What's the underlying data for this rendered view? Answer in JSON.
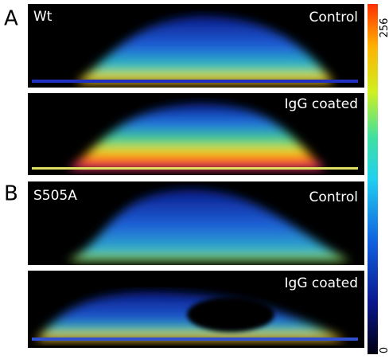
{
  "panels": [
    {
      "letter": "A",
      "sample": "Wt",
      "condition": "Control"
    },
    {
      "condition": "IgG coated"
    },
    {
      "letter": "B",
      "sample": "S505A",
      "condition": "Control"
    },
    {
      "condition": "IgG coated"
    }
  ],
  "colorbar": {
    "max": 256,
    "min": 0
  }
}
